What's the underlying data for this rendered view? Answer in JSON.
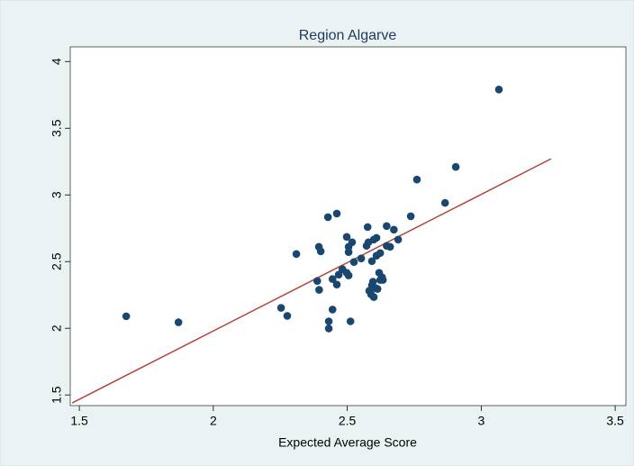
{
  "chart_data": {
    "type": "scatter",
    "title": "Region Algarve",
    "x_label": "Expected Average Score",
    "series": [
      {
        "color": "#1a476f",
        "x": [
          1.675,
          1.87,
          3.066,
          2.905,
          2.76,
          2.865,
          2.737,
          2.428,
          2.461,
          2.31,
          2.394,
          2.401,
          2.388,
          2.395,
          2.253,
          2.276,
          2.431,
          2.512,
          2.431,
          2.576,
          2.647,
          2.674,
          2.498,
          2.518,
          2.505,
          2.505,
          2.525,
          2.552,
          2.572,
          2.579,
          2.599,
          2.609,
          2.69,
          2.66,
          2.647,
          2.623,
          2.609,
          2.592,
          2.482,
          2.468,
          2.498,
          2.505,
          2.445,
          2.461,
          2.445,
          2.619,
          2.63,
          2.633,
          2.623,
          2.596,
          2.592,
          2.606,
          2.582,
          2.613,
          2.589,
          2.599
        ],
        "values": [
          2.09,
          2.045,
          3.79,
          3.21,
          3.115,
          2.94,
          2.84,
          2.833,
          2.86,
          2.557,
          2.611,
          2.577,
          2.355,
          2.288,
          2.153,
          2.093,
          2.052,
          2.052,
          1.998,
          2.759,
          2.766,
          2.739,
          2.685,
          2.645,
          2.611,
          2.571,
          2.497,
          2.524,
          2.618,
          2.645,
          2.665,
          2.678,
          2.665,
          2.611,
          2.618,
          2.564,
          2.544,
          2.503,
          2.443,
          2.402,
          2.416,
          2.396,
          2.369,
          2.328,
          2.14,
          2.416,
          2.382,
          2.362,
          2.362,
          2.349,
          2.322,
          2.301,
          2.281,
          2.295,
          2.254,
          2.234
        ]
      }
    ],
    "fit_line": {
      "x": [
        1.473,
        3.261
      ],
      "values": [
        1.44,
        3.271
      ],
      "color": "#b5443f"
    },
    "xlim": [
      1.466,
      3.54
    ],
    "ylim": [
      1.42,
      4.11
    ],
    "xticks": [
      1.5,
      2,
      2.5,
      3,
      3.5
    ],
    "yticks": [
      1.5,
      2,
      2.5,
      3,
      3.5,
      4
    ]
  }
}
